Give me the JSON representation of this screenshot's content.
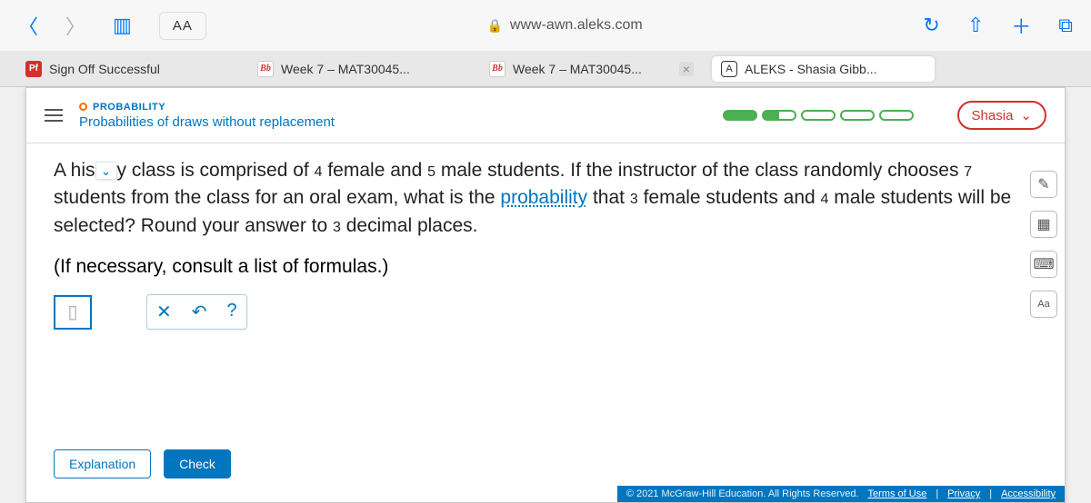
{
  "browser": {
    "text_size_label": "AA",
    "url": "www-awn.aleks.com",
    "tabs": [
      {
        "badge": "Pf",
        "label": "Sign Off Successful",
        "badge_bg": "#d32f2f"
      },
      {
        "badge": "Bb",
        "label": "Week 7 – MAT30045..."
      },
      {
        "badge": "Bb",
        "label": "Week 7 – MAT30045..."
      },
      {
        "badge": "A",
        "label": "ALEKS - Shasia Gibb...",
        "active": true
      }
    ]
  },
  "header": {
    "category": "PROBABILITY",
    "topic": "Probabilities of draws without replacement",
    "user": "Shasia"
  },
  "problem": {
    "pre": "A his",
    "post_collapse": "y class is comprised of ",
    "n_female": "4",
    "mid1": " female and ",
    "n_male": "5",
    "mid2": " male students. If the instructor of the class randomly chooses ",
    "n_choose": "7",
    "mid3": " students from the class for an oral exam, what is the ",
    "link_probability": "probability",
    "mid4": " that ",
    "n_fsel": "3",
    "mid5": " female students and ",
    "n_msel": "4",
    "mid6": " male students will be selected? Round your answer to ",
    "n_dec": "3",
    "mid7": " decimal places."
  },
  "subnote": {
    "pre": "(If necessary, consult a ",
    "link": "list of formulas",
    "post": ".)"
  },
  "answer_placeholder": "▯",
  "tools": {
    "clear": "✕",
    "undo": "↶",
    "help": "?"
  },
  "buttons": {
    "explanation": "Explanation",
    "check": "Check"
  },
  "footer": {
    "copyright": "© 2021 McGraw-Hill Education. All Rights Reserved.",
    "terms": "Terms of Use",
    "privacy": "Privacy",
    "accessibility": "Accessibility"
  }
}
